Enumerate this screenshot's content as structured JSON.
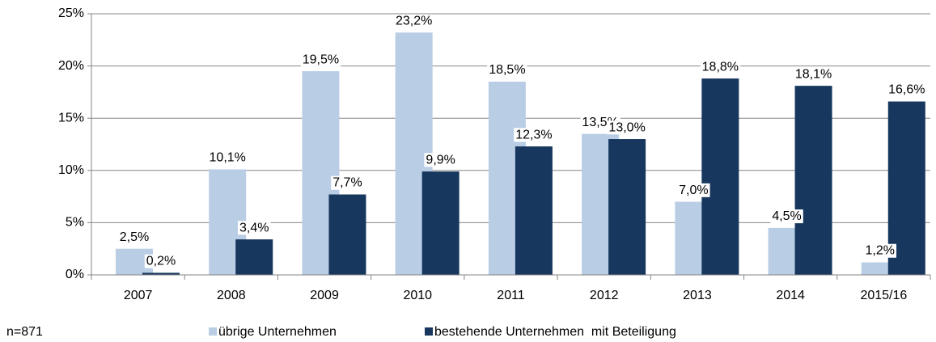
{
  "chart_data": {
    "type": "bar",
    "categories": [
      "2007",
      "2008",
      "2009",
      "2010",
      "2011",
      "2012",
      "2013",
      "2014",
      "2015/16"
    ],
    "series": [
      {
        "name": "übrige Unternehmen",
        "color": "#b9cde5",
        "values": [
          2.5,
          10.1,
          19.5,
          23.2,
          18.5,
          13.5,
          7.0,
          4.5,
          1.2
        ],
        "value_labels": [
          "2,5%",
          "10,1%",
          "19,5%",
          "23,2%",
          "18,5%",
          "13,5%",
          "7,0%",
          "4,5%",
          "1,2%"
        ]
      },
      {
        "name": "bestehende Unternehmen  mit Beteiligung",
        "color": "#17375e",
        "values": [
          0.2,
          3.4,
          7.7,
          9.9,
          12.3,
          13.0,
          18.8,
          18.1,
          16.6
        ],
        "value_labels": [
          "0,2%",
          "3,4%",
          "7,7%",
          "9,9%",
          "12,3%",
          "13,0%",
          "18,8%",
          "18,1%",
          "16,6%"
        ]
      }
    ],
    "ylim": [
      0,
      25
    ],
    "yticks": [
      {
        "value": 0,
        "label": "0%"
      },
      {
        "value": 5,
        "label": "5%"
      },
      {
        "value": 10,
        "label": "10%"
      },
      {
        "value": 15,
        "label": "15%"
      },
      {
        "value": 20,
        "label": "20%"
      },
      {
        "value": 25,
        "label": "25%"
      }
    ],
    "grid": true,
    "annotation": "n=871"
  }
}
